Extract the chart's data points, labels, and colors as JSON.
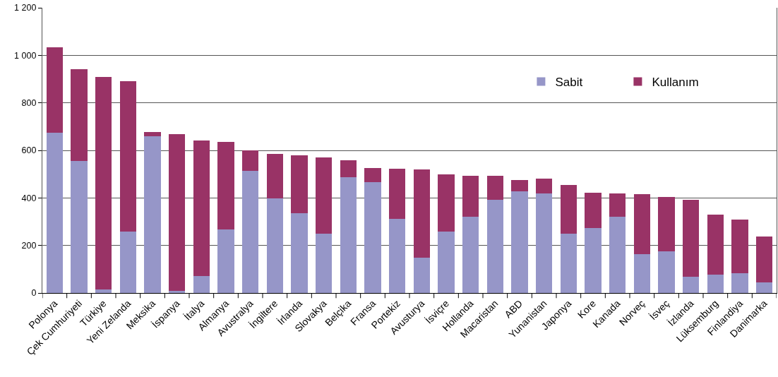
{
  "chart_data": {
    "type": "bar",
    "stacked": true,
    "categories": [
      "Polonya",
      "Çek Cumhuriyeti",
      "Türkiye",
      "Yeni Zelanda",
      "Meksika",
      "İspanya",
      "İtalya",
      "Almanya",
      "Avustralya",
      "İngiltere",
      "İrlanda",
      "Slovakya",
      "Belçika",
      "Fransa",
      "Portekiz",
      "Avusturya",
      "İsviçre",
      "Hollanda",
      "Macaristan",
      "ABD",
      "Yunanistan",
      "Japonya",
      "Kore",
      "Kanada",
      "Norveç",
      "İsveç",
      "İzlanda",
      "Lüksemburg",
      "Finlandiya",
      "Danimarka"
    ],
    "series": [
      {
        "name": "Sabit",
        "color": "#9696c8",
        "values": [
          674,
          555,
          15,
          258,
          659,
          9,
          71,
          267,
          513,
          398,
          335,
          249,
          487,
          466,
          312,
          148,
          258,
          321,
          392,
          427,
          418,
          249,
          273,
          321,
          163,
          175,
          68,
          77,
          83,
          45
        ]
      },
      {
        "name": "Kullanım",
        "color": "#993366",
        "values": [
          359,
          386,
          893,
          632,
          17,
          659,
          570,
          368,
          86,
          187,
          244,
          321,
          71,
          59,
          210,
          371,
          241,
          172,
          101,
          48,
          63,
          205,
          148,
          97,
          253,
          229,
          324,
          252,
          226,
          192
        ]
      }
    ],
    "ylim": [
      0,
      1200
    ],
    "yticks": [
      0,
      200,
      400,
      600,
      800,
      {
        "value": 1000,
        "label": "1 000"
      },
      {
        "value": 1200,
        "label": "1 200"
      }
    ],
    "grid": "y",
    "legend": "top right"
  }
}
